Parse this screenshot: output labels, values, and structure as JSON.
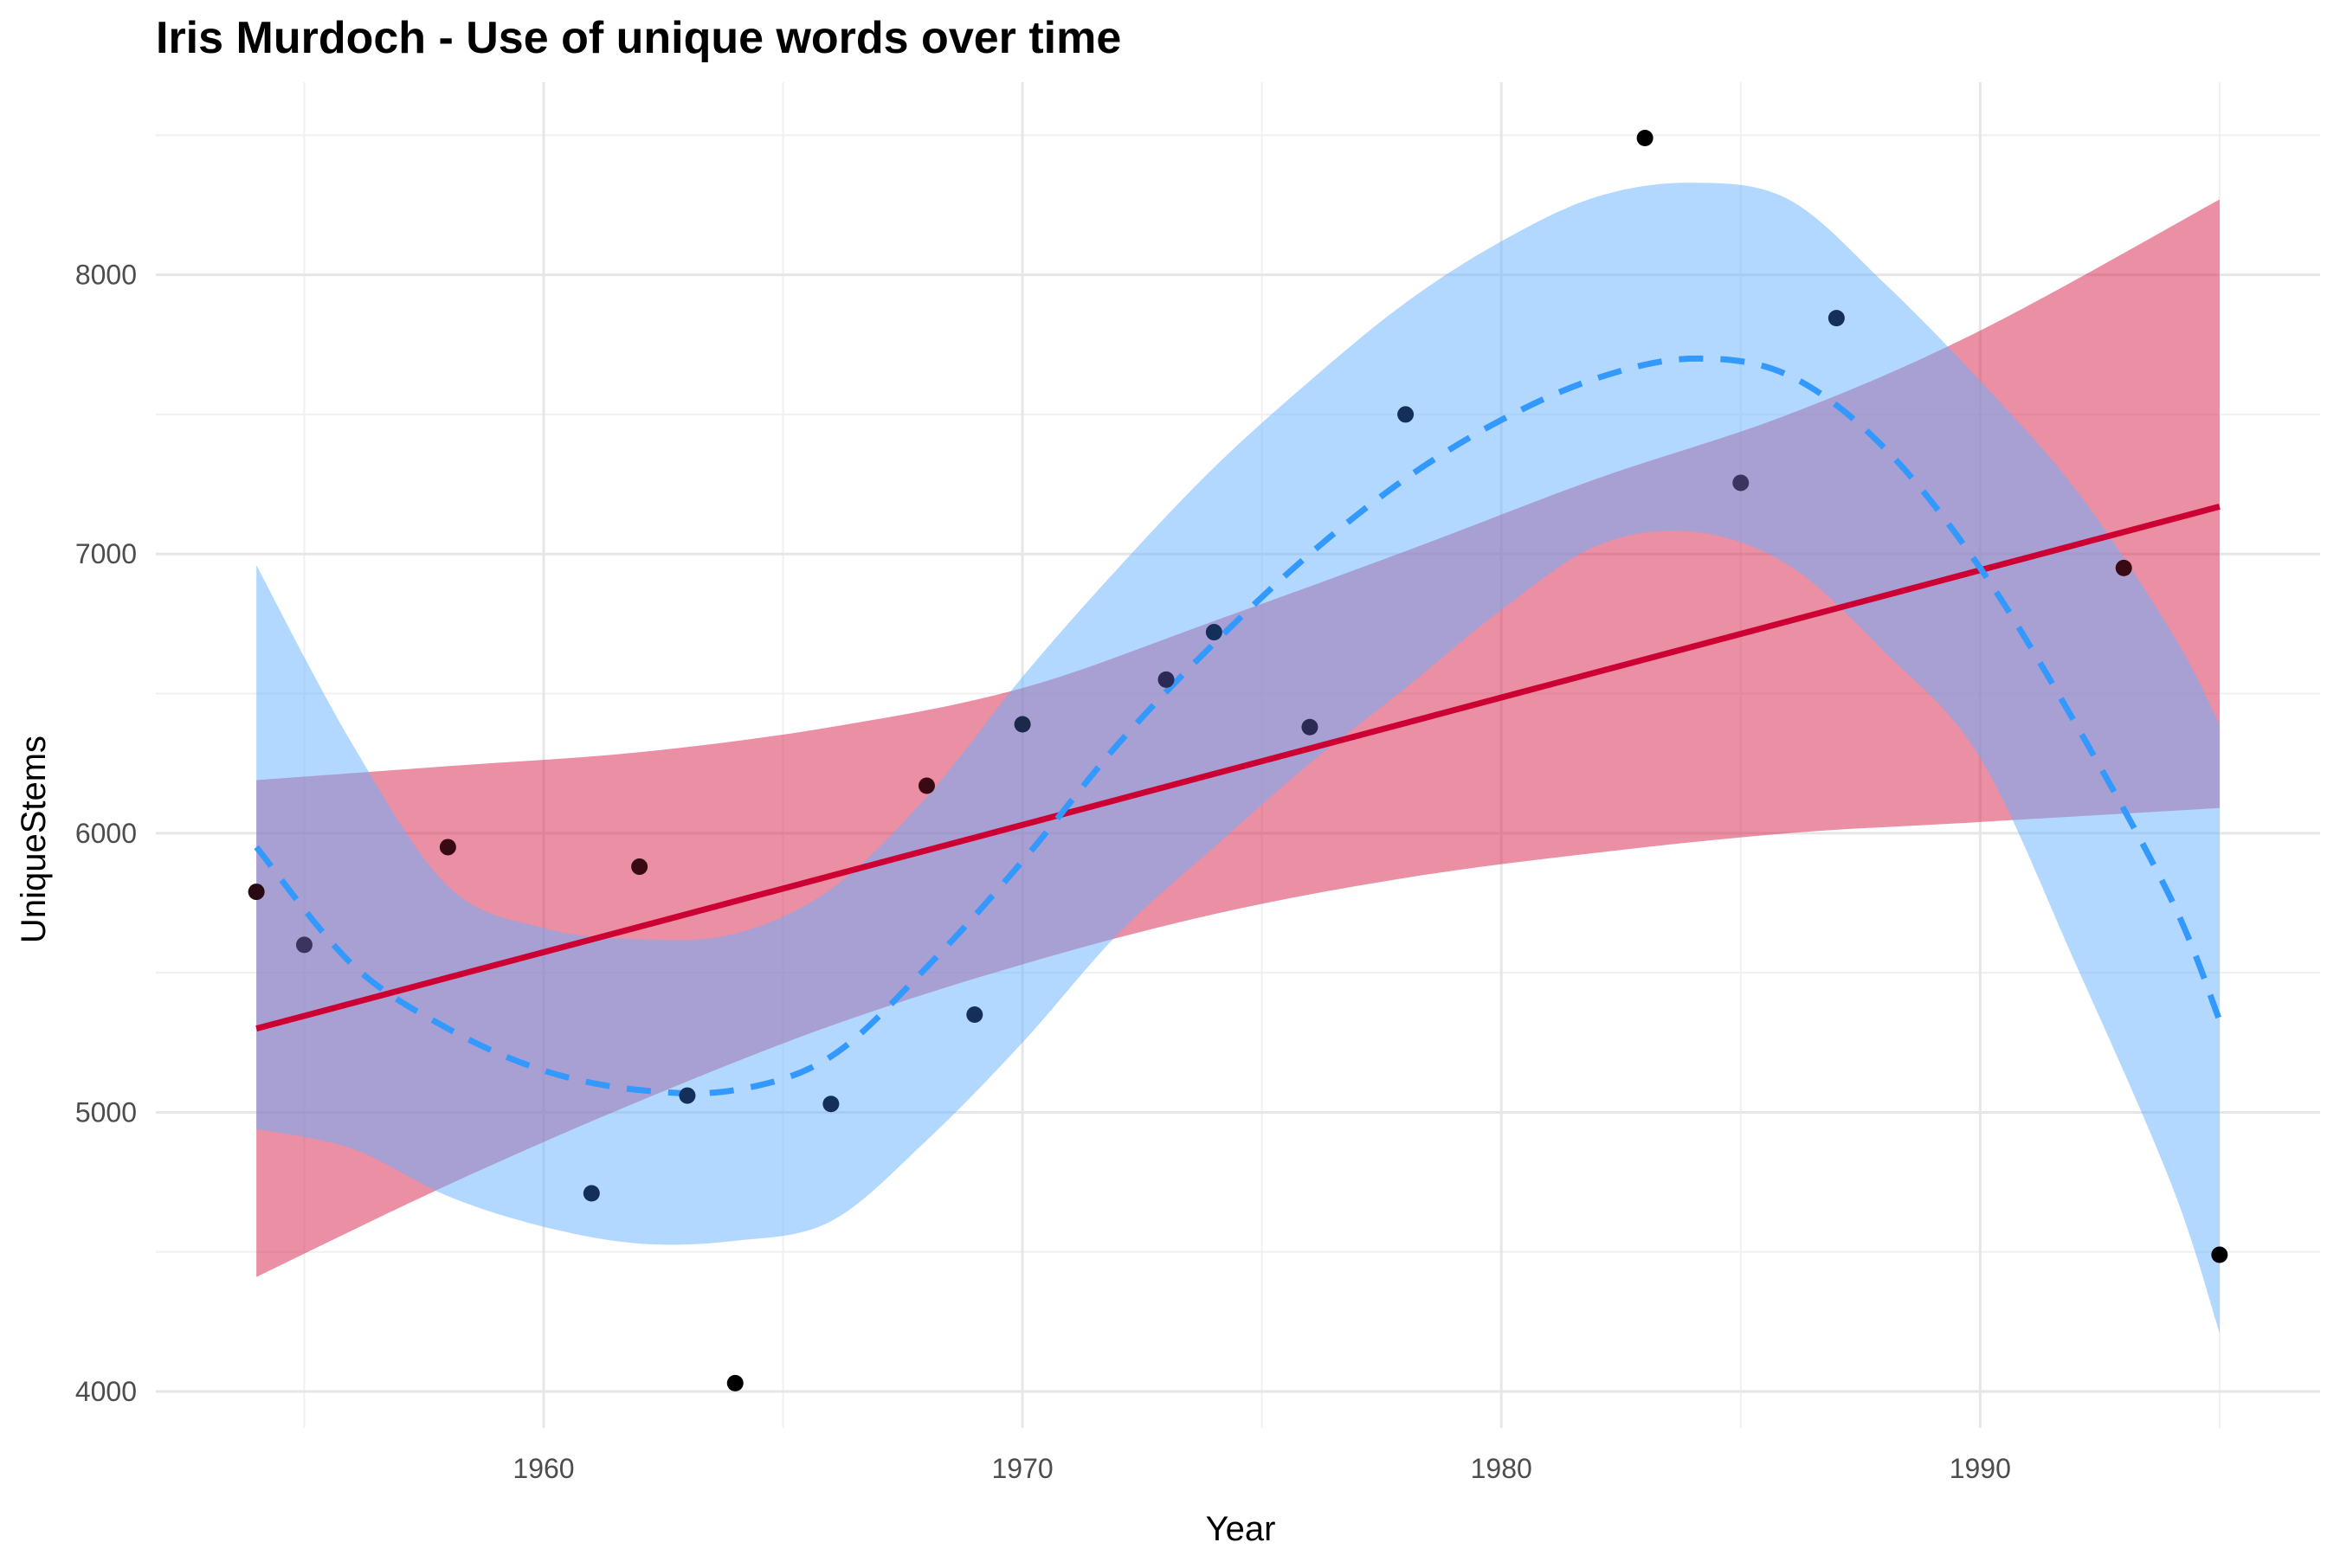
{
  "chart_data": {
    "type": "scatter",
    "title": "Iris Murdoch - Use of unique words over time",
    "xlabel": "Year",
    "ylabel": "UniqueStems",
    "xlim": [
      1951.9,
      1997.1
    ],
    "ylim": [
      3870,
      8690
    ],
    "x_ticks": [
      1960,
      1970,
      1980,
      1990
    ],
    "y_ticks": [
      4000,
      5000,
      6000,
      7000,
      8000
    ],
    "grid": true,
    "points": {
      "x": [
        1954,
        1955,
        1958,
        1961,
        1962,
        1963,
        1964,
        1966,
        1968,
        1969,
        1970,
        1973,
        1974,
        1976,
        1978,
        1983,
        1985,
        1987,
        1993,
        1995
      ],
      "y": [
        5790,
        5600,
        5950,
        4710,
        5880,
        5060,
        4030,
        5030,
        6170,
        5350,
        6390,
        6550,
        6720,
        6380,
        7500,
        8490,
        7255,
        7845,
        6950,
        4490
      ],
      "colors": [
        "#2a0a12",
        "#3a3560",
        "#3a0a14",
        "#14305a",
        "#3a0a14",
        "#14305a",
        "#000000",
        "#14305a",
        "#3a0a14",
        "#14305a",
        "#1a2a4a",
        "#2a2a55",
        "#14305a",
        "#2a2a55",
        "#14305a",
        "#000000",
        "#3a3560",
        "#14305a",
        "#3a0a14",
        "#000000"
      ]
    },
    "series": [
      {
        "name": "linear fit",
        "color": "#cc0033",
        "band_color": "#d6204a",
        "x": [
          1954,
          1995
        ],
        "y": [
          5300,
          7170
        ],
        "band_x": [
          1954,
          1958,
          1962,
          1966,
          1970,
          1974,
          1978,
          1982,
          1986,
          1990,
          1995
        ],
        "band_lower": [
          4410,
          4740,
          5040,
          5310,
          5530,
          5710,
          5840,
          5930,
          6000,
          6040,
          6090
        ],
        "band_upper": [
          6190,
          6240,
          6290,
          6380,
          6520,
          6760,
          7010,
          7270,
          7500,
          7800,
          8270
        ]
      },
      {
        "name": "loess fit",
        "color": "#3399ff",
        "band_color": "#66b2ff",
        "x": [
          1954,
          1956,
          1958,
          1960,
          1962,
          1964,
          1966,
          1968,
          1970,
          1972,
          1974,
          1976,
          1978,
          1980,
          1982,
          1984,
          1986,
          1988,
          1990,
          1992,
          1994,
          1995
        ],
        "y": [
          5950,
          5530,
          5300,
          5150,
          5080,
          5080,
          5200,
          5520,
          5900,
          6320,
          6680,
          7000,
          7270,
          7480,
          7630,
          7700,
          7640,
          7380,
          6950,
          6390,
          5760,
          5330
        ],
        "band_x": [
          1954,
          1956,
          1958,
          1960,
          1962,
          1964,
          1966,
          1968,
          1970,
          1972,
          1974,
          1976,
          1978,
          1980,
          1982,
          1984,
          1986,
          1988,
          1990,
          1992,
          1994,
          1995
        ],
        "band_lower": [
          4940,
          4870,
          4700,
          4590,
          4530,
          4540,
          4610,
          4900,
          5250,
          5640,
          5950,
          6250,
          6520,
          6800,
          7030,
          7080,
          6960,
          6650,
          6270,
          5530,
          4740,
          4210
        ],
        "band_upper": [
          6960,
          6320,
          5810,
          5660,
          5620,
          5640,
          5800,
          6130,
          6560,
          6950,
          7310,
          7620,
          7900,
          8120,
          8280,
          8330,
          8270,
          7970,
          7620,
          7230,
          6720,
          6390
        ]
      }
    ]
  }
}
